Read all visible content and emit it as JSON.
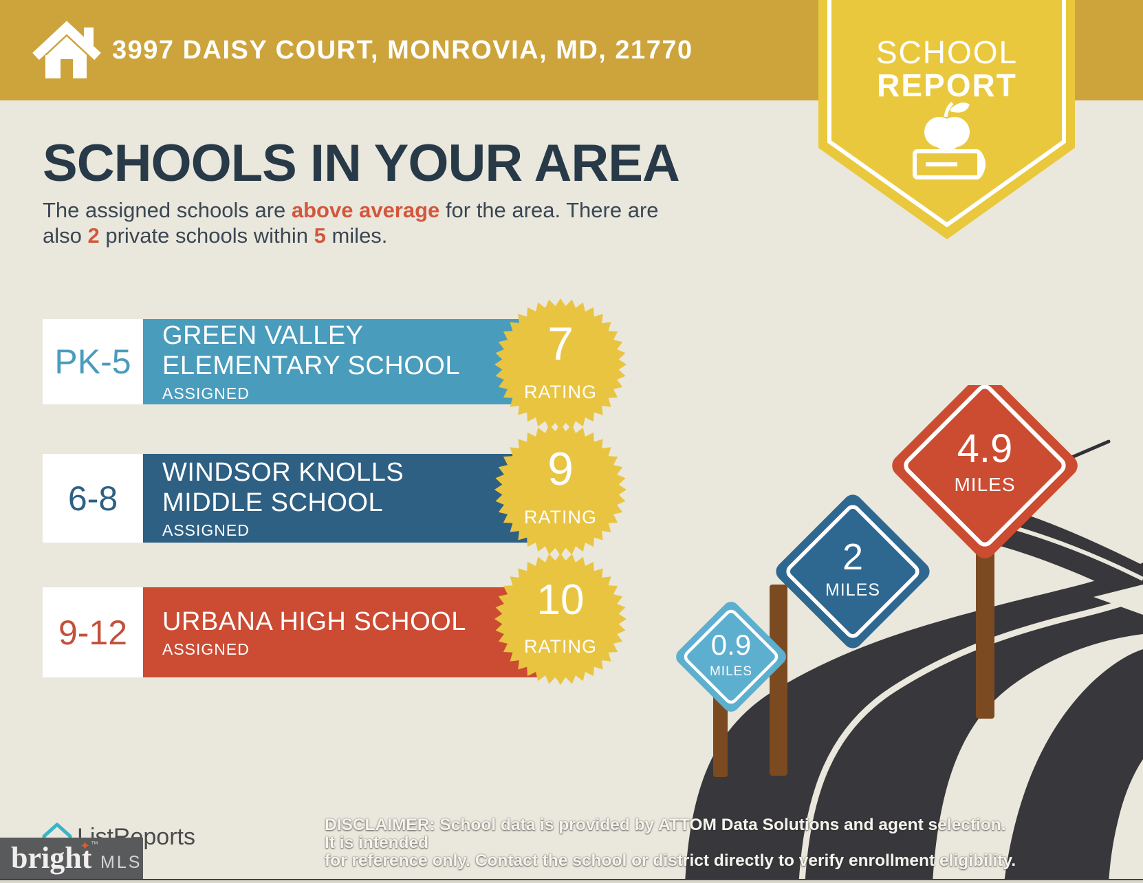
{
  "header": {
    "address": "3997 DAISY COURT, MONROVIA, MD, 21770"
  },
  "badge": {
    "line1": "SCHOOL",
    "line2": "REPORT"
  },
  "main": {
    "title": "SCHOOLS IN YOUR AREA",
    "intro": {
      "p1": "The assigned schools are ",
      "p2": "above average",
      "p3": " for the area. There are",
      "p4": "also ",
      "p5": "2",
      "p6": " private schools within ",
      "p7": "5",
      "p8": " miles."
    }
  },
  "rating_label": "RATING",
  "schools": [
    {
      "grades": "PK-5",
      "name_line1": "GREEN VALLEY",
      "name_line2": "ELEMENTARY SCHOOL",
      "status": "ASSIGNED",
      "rating": "7",
      "color": "#4A9CBC"
    },
    {
      "grades": "6-8",
      "name_line1": "WINDSOR KNOLLS",
      "name_line2": "MIDDLE SCHOOL",
      "status": "ASSIGNED",
      "rating": "9",
      "color": "#2E6084"
    },
    {
      "grades": "9-12",
      "name_line1": "URBANA HIGH SCHOOL",
      "name_line2": "",
      "status": "ASSIGNED",
      "rating": "10",
      "color": "#CC4B33"
    }
  ],
  "signs": [
    {
      "distance": "0.9",
      "unit": "MILES",
      "color": "#5DAFCF"
    },
    {
      "distance": "2",
      "unit": "MILES",
      "color": "#2E6891"
    },
    {
      "distance": "4.9",
      "unit": "MILES",
      "color": "#CC4C32"
    }
  ],
  "footer": {
    "listreports_label": "ListReports",
    "bright_label": "bright",
    "bright_star": "✦",
    "tm": "™",
    "mls_label": "MLS",
    "disclaimer_bold": "DISCLAIMER:",
    "disclaimer_line1": " School data is provided by ATTOM Data Solutions and agent selection. It is intended",
    "disclaimer_line2": "for reference only. Contact the school or district directly to verify enrollment eligibility."
  },
  "colors": {
    "banner_gold": "#CDA43C",
    "badge_yellow": "#EAC83E",
    "heading_navy": "#283A48",
    "accent_orange": "#D2573C",
    "elementary_blue": "#4A9CBC",
    "middle_blue": "#2E6084",
    "high_red": "#CC4B33",
    "starburst_yellow": "#E9C440",
    "road_dark": "#38373B",
    "post_brown": "#7B4A21",
    "background_cream": "#EAE7DC",
    "bright_mls_gray": "#595A5C",
    "listreports_teal": "#3AB5C6"
  }
}
